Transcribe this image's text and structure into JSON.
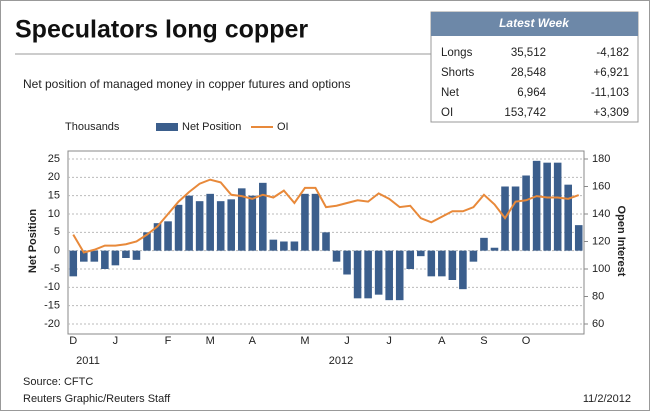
{
  "chart_data": {
    "type": "bar_line",
    "title": "Speculators long copper",
    "subtitle": "Net position of managed money in copper futures and options",
    "unit_label": "Thousands",
    "ylabel": "Net Position",
    "y2label": "Open Interest",
    "categories": [
      "D",
      null,
      null,
      null,
      "J",
      null,
      null,
      null,
      null,
      "F",
      null,
      null,
      null,
      "M",
      null,
      null,
      null,
      "A",
      null,
      null,
      null,
      null,
      "M",
      null,
      null,
      null,
      "J",
      null,
      null,
      null,
      "J",
      null,
      null,
      null,
      null,
      "A",
      null,
      null,
      null,
      "S",
      null,
      null,
      null,
      "O",
      null,
      null,
      null,
      null,
      null
    ],
    "year_labels": [
      "2011",
      "2012"
    ],
    "series": [
      {
        "name": "Net Position",
        "type": "bar",
        "color": "#3b5e8c",
        "values": [
          -7,
          -3,
          -3,
          -5,
          -4,
          -2,
          -2.5,
          5,
          7.5,
          8,
          12.5,
          15,
          13.5,
          15.5,
          13.5,
          14,
          17,
          15,
          18.5,
          3,
          2.5,
          2.5,
          15.5,
          15.5,
          5,
          -3,
          -6.5,
          -13,
          -13,
          -12,
          -13.5,
          -13.5,
          -5,
          -1.5,
          -7,
          -7,
          -8,
          -10.5,
          -3,
          3.5,
          0.8,
          17.5,
          17.5,
          20.5,
          24.5,
          24,
          24,
          18,
          6.964
        ]
      },
      {
        "name": "OI",
        "type": "line",
        "axis": "y2",
        "color": "#e8893a",
        "values": [
          125,
          112,
          114,
          117,
          117,
          118,
          120,
          125,
          131,
          140,
          149,
          156,
          162,
          165,
          163,
          154,
          153,
          151,
          154,
          152,
          157,
          148,
          159,
          159,
          145,
          146,
          148,
          150,
          149,
          155,
          151,
          145,
          146,
          137,
          134,
          138,
          142,
          142,
          145,
          154,
          147,
          137,
          149,
          150,
          153,
          152,
          152,
          151,
          153.742
        ]
      }
    ],
    "ylim": [
      -20,
      25
    ],
    "yticks": [
      -20,
      -15,
      -10,
      -5,
      0,
      5,
      10,
      15,
      20,
      25
    ],
    "y2lim": [
      60,
      180
    ],
    "y2ticks": [
      60,
      80,
      100,
      120,
      140,
      160,
      180
    ],
    "grid": true
  },
  "table": {
    "header": "Latest Week",
    "rows": [
      [
        "Longs",
        "35,512",
        "-4,182"
      ],
      [
        "Shorts",
        "28,548",
        "+6,921"
      ],
      [
        "Net",
        "6,964",
        "-11,103"
      ],
      [
        "OI",
        "153,742",
        "+3,309"
      ]
    ]
  },
  "footer": {
    "source": "Source: CFTC",
    "credit": "Reuters Graphic/Reuters Staff",
    "date": "11/2/2012"
  }
}
